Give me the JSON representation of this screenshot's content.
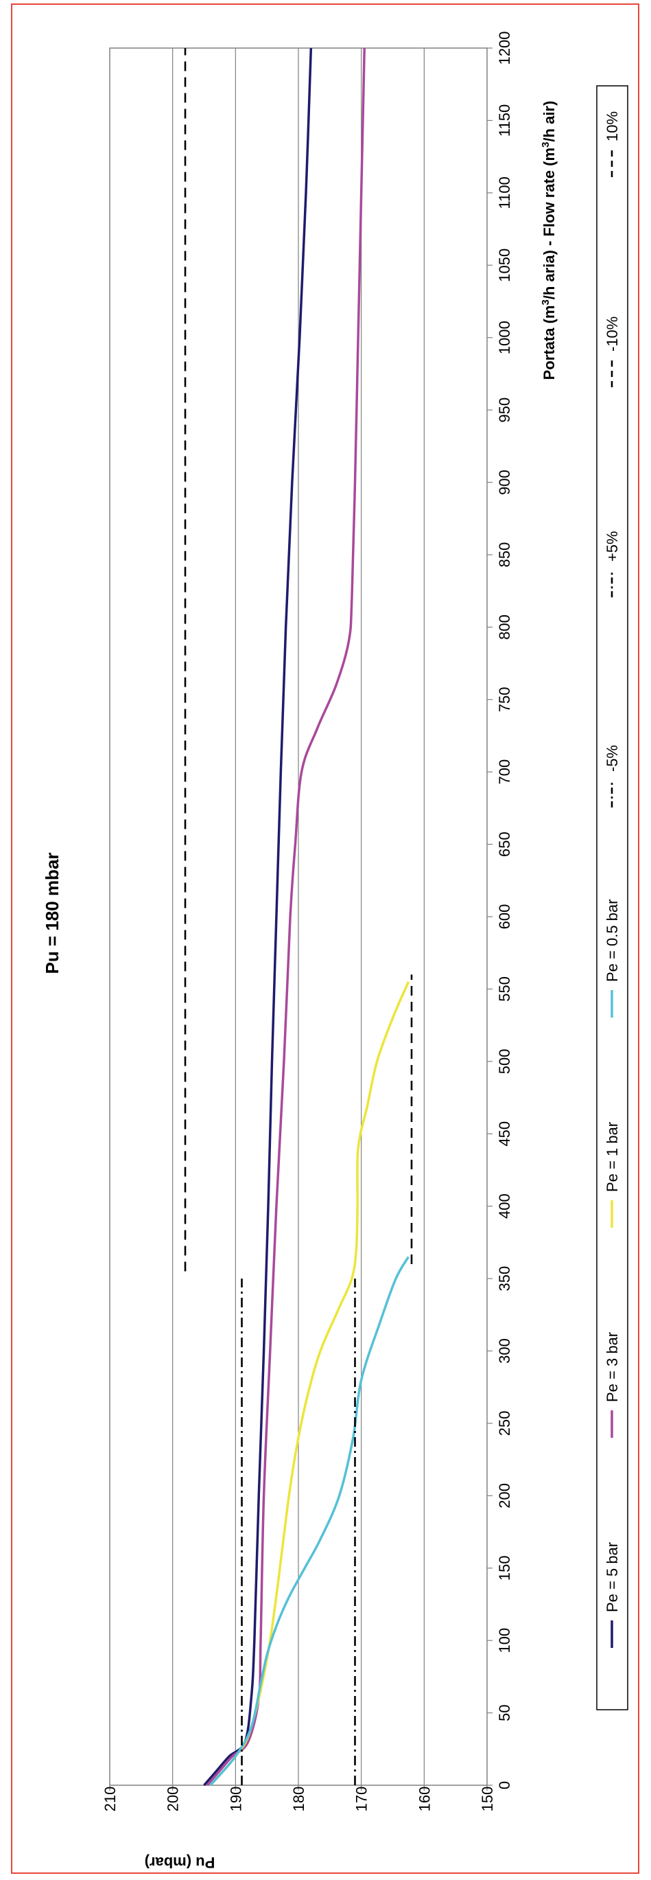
{
  "chart_data": {
    "type": "line",
    "title": "Pu = 180 mbar",
    "xlabel": "Portata (m³/h aria) - Flow rate (m³/h air)",
    "ylabel": "Pu (mbar)",
    "xlim": [
      0,
      1200
    ],
    "ylim": [
      150,
      210
    ],
    "x_ticks": [
      "0",
      "50",
      "100",
      "150",
      "200",
      "250",
      "300",
      "350",
      "400",
      "450",
      "500",
      "550",
      "600",
      "650",
      "700",
      "750",
      "800",
      "850",
      "900",
      "950",
      "1000",
      "1050",
      "1100",
      "1150",
      "1200"
    ],
    "y_ticks": [
      "150",
      "160",
      "170",
      "180",
      "190",
      "200",
      "210"
    ],
    "grid": true,
    "rotated": true,
    "legend_position": "left",
    "series": [
      {
        "name": "Pe = 5 bar",
        "color": "#1f1b6b",
        "dash": "solid",
        "points": [
          [
            0,
            195
          ],
          [
            10,
            193
          ],
          [
            20,
            191
          ],
          [
            30,
            188.5
          ],
          [
            60,
            187.5
          ],
          [
            100,
            187
          ],
          [
            200,
            186.3
          ],
          [
            300,
            185.5
          ],
          [
            400,
            184.8
          ],
          [
            500,
            184.2
          ],
          [
            600,
            183.5
          ],
          [
            700,
            182.8
          ],
          [
            800,
            182
          ],
          [
            900,
            181
          ],
          [
            1000,
            179.8
          ],
          [
            1100,
            178.8
          ],
          [
            1200,
            178
          ]
        ]
      },
      {
        "name": "Pe = 3 bar",
        "color": "#a9499b",
        "dash": "solid",
        "points": [
          [
            0,
            194.5
          ],
          [
            10,
            192.5
          ],
          [
            20,
            190.5
          ],
          [
            30,
            188
          ],
          [
            60,
            186.3
          ],
          [
            100,
            186
          ],
          [
            200,
            185.5
          ],
          [
            300,
            184.5
          ],
          [
            400,
            183.5
          ],
          [
            500,
            182.3
          ],
          [
            600,
            181.3
          ],
          [
            650,
            180.5
          ],
          [
            700,
            179.5
          ],
          [
            730,
            177
          ],
          [
            760,
            174
          ],
          [
            790,
            172
          ],
          [
            820,
            171.5
          ],
          [
            900,
            171
          ],
          [
            1000,
            170.5
          ],
          [
            1100,
            170
          ],
          [
            1200,
            169.5
          ]
        ]
      },
      {
        "name": "Pe = 1 bar",
        "color": "#ece53c",
        "dash": "solid",
        "points": [
          [
            0,
            194
          ],
          [
            20,
            190
          ],
          [
            40,
            187.5
          ],
          [
            100,
            184.5
          ],
          [
            200,
            181.5
          ],
          [
            240,
            180
          ],
          [
            270,
            178.5
          ],
          [
            300,
            176.5
          ],
          [
            330,
            173.5
          ],
          [
            350,
            171.5
          ],
          [
            370,
            170.8
          ],
          [
            400,
            170.6
          ],
          [
            440,
            170.5
          ],
          [
            470,
            169
          ],
          [
            500,
            167.5
          ],
          [
            530,
            165
          ],
          [
            555,
            162.5
          ]
        ]
      },
      {
        "name": "Pe = 0.5 bar",
        "color": "#55c0d7",
        "dash": "solid",
        "points": [
          [
            0,
            194
          ],
          [
            20,
            190
          ],
          [
            40,
            187.5
          ],
          [
            70,
            186
          ],
          [
            90,
            185
          ],
          [
            110,
            183.5
          ],
          [
            130,
            181.5
          ],
          [
            150,
            179
          ],
          [
            170,
            176.5
          ],
          [
            200,
            173.5
          ],
          [
            240,
            171.3
          ],
          [
            280,
            170
          ],
          [
            320,
            167
          ],
          [
            350,
            164.5
          ],
          [
            365,
            162.5
          ]
        ]
      },
      {
        "name": "-5%",
        "color": "#000000",
        "dash": "dashdot",
        "points": [
          [
            0,
            171
          ],
          [
            350,
            171
          ]
        ]
      },
      {
        "name": "+5%",
        "color": "#000000",
        "dash": "dashdot",
        "points": [
          [
            0,
            189
          ],
          [
            350,
            189
          ]
        ]
      },
      {
        "name": "-10%",
        "color": "#000000",
        "dash": "dash",
        "points": [
          [
            360,
            162
          ],
          [
            560,
            162
          ]
        ]
      },
      {
        "name": "10%",
        "color": "#000000",
        "dash": "dash",
        "points": [
          [
            355,
            198
          ],
          [
            1200,
            198
          ]
        ]
      }
    ]
  }
}
